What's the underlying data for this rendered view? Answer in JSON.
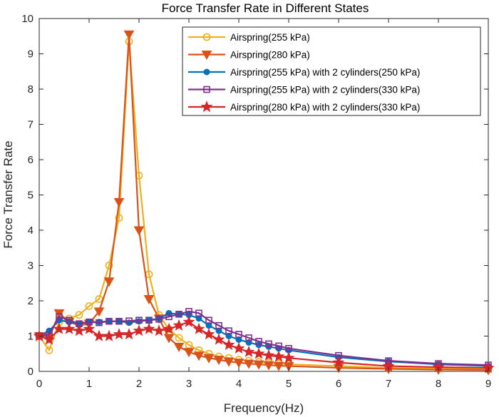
{
  "chart_data": {
    "type": "line",
    "title": "Force Transfer Rate in Different States",
    "xlabel": "Frequency(Hz)",
    "ylabel": "Force Transfer Rate",
    "xlim": [
      0,
      9
    ],
    "ylim": [
      0,
      10
    ],
    "xticks": [
      0,
      1,
      2,
      3,
      4,
      5,
      6,
      7,
      8,
      9
    ],
    "yticks": [
      0,
      1,
      2,
      3,
      4,
      5,
      6,
      7,
      8,
      9,
      10
    ],
    "grid": false,
    "legend_position": "top-right",
    "series": [
      {
        "name": "Airspring(255 kPa)",
        "color": "#EDB120",
        "marker": "circle",
        "x": [
          0,
          0.2,
          0.4,
          0.6,
          0.8,
          1.0,
          1.2,
          1.4,
          1.6,
          1.8,
          2.0,
          2.2,
          2.4,
          2.6,
          2.8,
          3.0,
          3.2,
          3.4,
          3.6,
          3.8,
          4.0,
          4.2,
          4.4,
          4.6,
          4.8,
          5.0,
          6.0,
          7.0,
          8.0,
          9.0
        ],
        "y": [
          1.0,
          0.6,
          1.4,
          1.5,
          1.6,
          1.85,
          2.05,
          3.0,
          4.35,
          9.35,
          5.55,
          2.75,
          1.6,
          1.2,
          0.95,
          0.75,
          0.6,
          0.5,
          0.42,
          0.38,
          0.33,
          0.3,
          0.27,
          0.24,
          0.22,
          0.2,
          0.15,
          0.1,
          0.08,
          0.06
        ]
      },
      {
        "name": "Airspring(280 kPa)",
        "color": "#D95319",
        "marker": "triangle-down",
        "x": [
          0,
          0.2,
          0.4,
          0.6,
          0.8,
          1.0,
          1.2,
          1.4,
          1.6,
          1.8,
          2.0,
          2.2,
          2.4,
          2.6,
          2.8,
          3.0,
          3.2,
          3.4,
          3.6,
          3.8,
          4.0,
          4.2,
          4.4,
          4.6,
          4.8,
          5.0,
          6.0,
          7.0,
          8.0,
          9.0
        ],
        "y": [
          1.0,
          0.95,
          1.65,
          1.4,
          1.3,
          1.35,
          1.7,
          2.55,
          4.8,
          9.55,
          4.0,
          2.05,
          1.5,
          0.95,
          0.7,
          0.55,
          0.45,
          0.38,
          0.33,
          0.28,
          0.25,
          0.22,
          0.2,
          0.18,
          0.16,
          0.15,
          0.1,
          0.07,
          0.05,
          0.04
        ]
      },
      {
        "name": "Airspring(255 kPa) with 2 cylinders(250 kPa)",
        "color": "#0072BD",
        "marker": "dot",
        "x": [
          0,
          0.2,
          0.4,
          0.6,
          0.8,
          1.0,
          1.2,
          1.4,
          1.6,
          1.8,
          2.0,
          2.2,
          2.4,
          2.6,
          2.8,
          3.0,
          3.2,
          3.4,
          3.6,
          3.8,
          4.0,
          4.2,
          4.4,
          4.6,
          4.8,
          5.0,
          6.0,
          7.0,
          8.0,
          9.0
        ],
        "y": [
          1.0,
          1.15,
          1.45,
          1.4,
          1.35,
          1.4,
          1.4,
          1.42,
          1.42,
          1.38,
          1.42,
          1.45,
          1.5,
          1.65,
          1.62,
          1.6,
          1.5,
          1.3,
          1.15,
          1.0,
          0.9,
          0.82,
          0.75,
          0.7,
          0.65,
          0.6,
          0.4,
          0.28,
          0.2,
          0.15
        ]
      },
      {
        "name": "Airspring(255 kPa) with 2 cylinders(330 kPa)",
        "color": "#7E2F8E",
        "marker": "square",
        "x": [
          0,
          0.2,
          0.4,
          0.6,
          0.8,
          1.0,
          1.2,
          1.4,
          1.6,
          1.8,
          2.0,
          2.2,
          2.4,
          2.6,
          2.8,
          3.0,
          3.2,
          3.4,
          3.6,
          3.8,
          4.0,
          4.2,
          4.4,
          4.6,
          4.8,
          5.0,
          6.0,
          7.0,
          8.0,
          9.0
        ],
        "y": [
          1.0,
          1.05,
          1.55,
          1.45,
          1.35,
          1.4,
          1.38,
          1.42,
          1.42,
          1.43,
          1.45,
          1.45,
          1.48,
          1.55,
          1.62,
          1.7,
          1.65,
          1.45,
          1.3,
          1.15,
          1.05,
          0.95,
          0.85,
          0.78,
          0.72,
          0.65,
          0.45,
          0.3,
          0.22,
          0.18
        ]
      },
      {
        "name": "Airspring(280 kPa) with 2 cylinders(330 kPa)",
        "color": "#D62728",
        "marker": "star",
        "x": [
          0,
          0.2,
          0.4,
          0.6,
          0.8,
          1.0,
          1.2,
          1.4,
          1.6,
          1.8,
          2.0,
          2.2,
          2.4,
          2.6,
          2.8,
          3.0,
          3.2,
          3.4,
          3.6,
          3.8,
          4.0,
          4.2,
          4.4,
          4.6,
          4.8,
          5.0,
          6.0,
          7.0,
          8.0,
          9.0
        ],
        "y": [
          1.0,
          0.9,
          1.2,
          1.2,
          1.15,
          1.2,
          1.0,
          1.0,
          1.05,
          1.05,
          1.15,
          1.2,
          1.15,
          1.2,
          1.3,
          1.4,
          1.2,
          1.05,
          0.9,
          0.75,
          0.65,
          0.55,
          0.5,
          0.45,
          0.42,
          0.38,
          0.25,
          0.15,
          0.12,
          0.1
        ]
      }
    ]
  }
}
